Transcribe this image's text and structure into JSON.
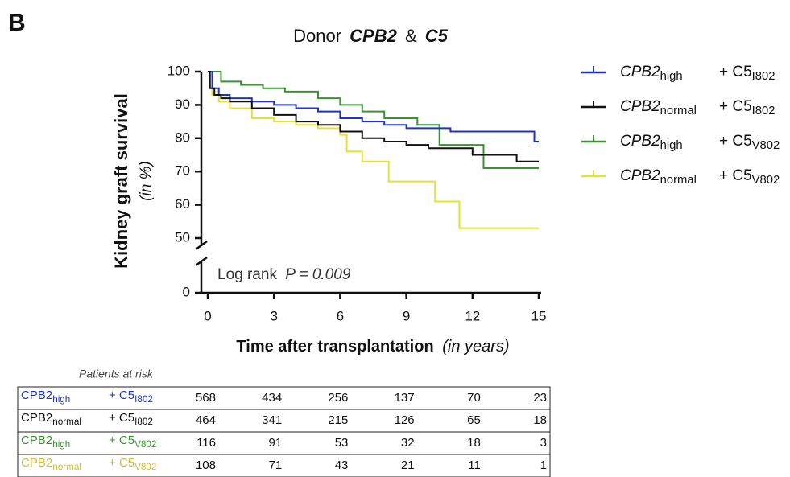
{
  "panel_label": "B",
  "chart_data": {
    "type": "step",
    "title": [
      "Donor",
      "CPB2",
      "&",
      "C5"
    ],
    "ylabel": [
      "Kidney graft survival",
      "(in %)"
    ],
    "xlabel": [
      "Time after transplantation",
      "(in years)"
    ],
    "annotation": [
      "Log rank",
      "P = 0.009"
    ],
    "xlim": [
      0,
      15
    ],
    "xticks": [
      0,
      3,
      6,
      9,
      12,
      15
    ],
    "ylim": [
      0,
      100
    ],
    "ybreak": [
      0,
      50
    ],
    "yticks": [
      0,
      50,
      60,
      70,
      80,
      90,
      100
    ],
    "legend": "right",
    "series": [
      {
        "name": [
          "CPB2",
          "high",
          "+ C5",
          "I802"
        ],
        "color": "#1f35c0",
        "table_color": "#1f35c0",
        "x": [
          0,
          0.2,
          0.5,
          1,
          2,
          3,
          4,
          5,
          6,
          7,
          8,
          9,
          11,
          14.8,
          15
        ],
        "values": [
          100,
          95,
          93,
          92,
          91,
          90,
          89,
          88,
          86,
          85,
          84,
          83,
          82,
          79,
          79
        ]
      },
      {
        "name": [
          "CPB2",
          "normal",
          "+ C5",
          "I802"
        ],
        "color": "#111111",
        "table_color": "#111111",
        "x": [
          0,
          0.1,
          0.3,
          0.6,
          1,
          2,
          3,
          4,
          5,
          6,
          7,
          8,
          9,
          10,
          12,
          14,
          15
        ],
        "values": [
          100,
          95,
          93,
          92,
          91,
          89,
          87,
          85,
          84,
          82,
          80,
          79,
          78,
          77,
          75,
          73,
          73
        ]
      },
      {
        "name": [
          "CPB2",
          "high",
          "+ C5",
          "V802"
        ],
        "color": "#3a9230",
        "table_color": "#3a9230",
        "x": [
          0,
          0.6,
          1.5,
          2.5,
          3.5,
          5,
          6,
          7,
          8,
          9.5,
          10.5,
          12.5,
          15
        ],
        "values": [
          100,
          97,
          96,
          95,
          94,
          92,
          90,
          88,
          86,
          84,
          78,
          71,
          71
        ]
      },
      {
        "name": [
          "CPB2",
          "normal",
          "+ C5",
          "V802"
        ],
        "color": "#e6e233",
        "table_color": "#d4bb3a",
        "x": [
          0,
          0.2,
          0.5,
          1,
          2,
          3,
          4,
          5,
          6,
          6.3,
          7,
          8.2,
          10.3,
          11.4,
          15
        ],
        "values": [
          100,
          93,
          91,
          89,
          86,
          85,
          84,
          83,
          81,
          76,
          73,
          67,
          61,
          53,
          53
        ]
      }
    ],
    "risk_table": {
      "title": "Patients at risk",
      "rows": [
        [
          568,
          434,
          256,
          137,
          70,
          23
        ],
        [
          464,
          341,
          215,
          126,
          65,
          18
        ],
        [
          116,
          91,
          53,
          32,
          18,
          3
        ],
        [
          108,
          71,
          43,
          21,
          11,
          1
        ]
      ]
    }
  }
}
